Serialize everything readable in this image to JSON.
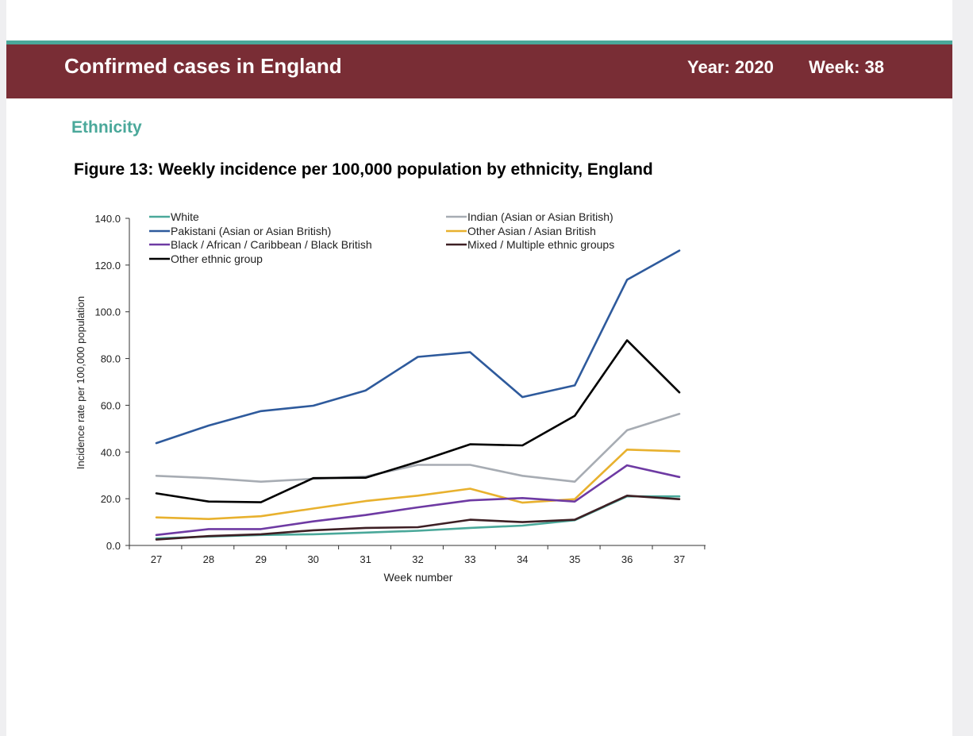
{
  "header": {
    "title": "Confirmed cases in England",
    "year_label": "Year: 2020",
    "week_label": "Week: 38"
  },
  "section": {
    "heading": "Ethnicity",
    "figure_title": "Figure 13: Weekly incidence per 100,000 population by ethnicity, England"
  },
  "colors": {
    "banner": "#792d35",
    "accent_teal": "#4aa89a"
  },
  "chart_data": {
    "type": "line",
    "title": "Figure 13: Weekly incidence per 100,000 population by ethnicity, England",
    "xlabel": "Week number",
    "ylabel": "Incidence rate per 100,000 population",
    "x": [
      "27",
      "28",
      "29",
      "30",
      "31",
      "32",
      "33",
      "34",
      "35",
      "36",
      "37"
    ],
    "ylim": [
      0,
      140
    ],
    "yticks": [
      "0.0",
      "20.0",
      "40.0",
      "60.0",
      "80.0",
      "100.0",
      "120.0",
      "140.0"
    ],
    "grid": false,
    "legend_position": "top",
    "series": [
      {
        "name": "White",
        "color": "#4aa89a",
        "values": [
          3.0,
          3.8,
          4.5,
          4.8,
          5.5,
          6.3,
          7.5,
          8.5,
          10.8,
          21.0,
          21.0
        ]
      },
      {
        "name": "Indian (Asian or Asian British)",
        "color": "#a7acb3",
        "values": [
          29.8,
          28.8,
          27.3,
          28.5,
          29.5,
          34.5,
          34.5,
          29.8,
          27.3,
          49.3,
          56.3
        ]
      },
      {
        "name": "Pakistani (Asian or Asian British)",
        "color": "#2e5a9c",
        "values": [
          43.8,
          51.3,
          57.5,
          59.8,
          66.3,
          80.7,
          82.7,
          63.5,
          68.5,
          113.7,
          126.2
        ]
      },
      {
        "name": "Other Asian / Asian British",
        "color": "#e8b12e",
        "values": [
          12.0,
          11.3,
          12.5,
          15.8,
          19.0,
          21.3,
          24.3,
          18.3,
          19.8,
          41.0,
          40.3
        ]
      },
      {
        "name": "Black / African / Caribbean / Black British",
        "color": "#6e3aa3",
        "values": [
          4.5,
          7.0,
          7.0,
          10.3,
          13.0,
          16.3,
          19.3,
          20.3,
          18.8,
          34.3,
          29.3
        ]
      },
      {
        "name": "Mixed / Multiple ethnic groups",
        "color": "#3d1f24",
        "values": [
          2.5,
          4.0,
          4.8,
          6.5,
          7.5,
          7.8,
          11.0,
          10.0,
          11.0,
          21.3,
          19.8
        ]
      },
      {
        "name": "Other ethnic group",
        "color": "#000000",
        "values": [
          22.3,
          18.8,
          18.5,
          28.8,
          29.0,
          35.8,
          43.3,
          42.8,
          55.5,
          87.8,
          65.5
        ]
      }
    ]
  }
}
